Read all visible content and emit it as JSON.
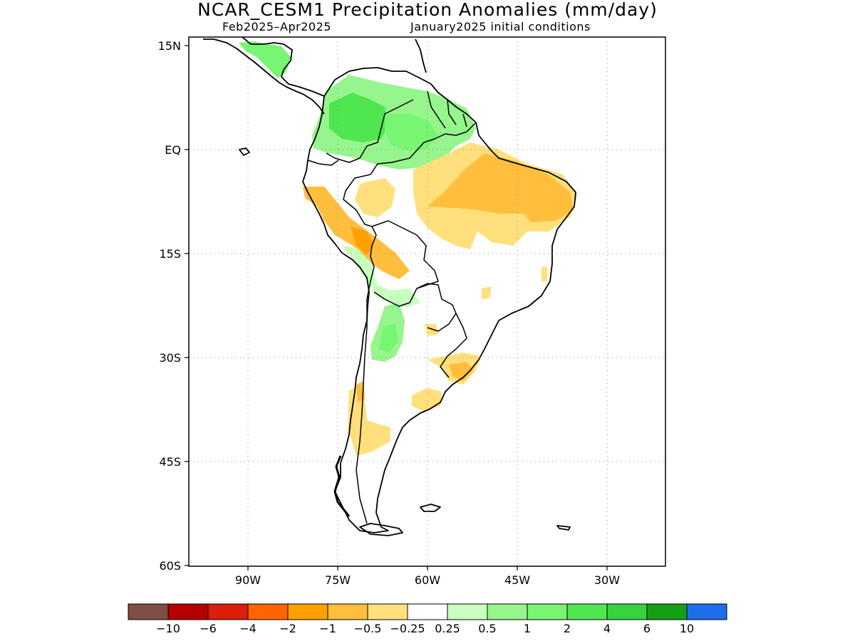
{
  "title": "NCAR_CESM1 Precipitation Anomalies (mm/day)",
  "subtitle_left": "Feb2025–Apr2025",
  "subtitle_right": "January2025 initial conditions",
  "map": {
    "type": "filled-contour-map",
    "region": "South America",
    "lat_ticks": [
      "15N",
      "EQ",
      "15S",
      "30S",
      "45S",
      "60S"
    ],
    "lon_ticks": [
      "90W",
      "75W",
      "60W",
      "45W",
      "30W"
    ],
    "lat_range": [
      -60,
      15
    ],
    "lon_range": [
      -100,
      -20
    ],
    "grid": "dotted"
  },
  "colorbar": {
    "colors": [
      "#7f4f45",
      "#b40000",
      "#dc1e0a",
      "#ff6400",
      "#ffa000",
      "#ffbe3c",
      "#ffe07c",
      "#ffffff",
      "#c8ffbe",
      "#96f58c",
      "#78f573",
      "#50e650",
      "#37d23c",
      "#14a014",
      "#1e6eeb"
    ],
    "labels": [
      "−10",
      "−6",
      "−4",
      "−2",
      "−1",
      "−0.5",
      "−0.25",
      "0.25",
      "0.5",
      "1",
      "2",
      "4",
      "6",
      "10"
    ]
  },
  "anomaly_regions": [
    {
      "name": "northwest-amazon-wet",
      "class": "2"
    },
    {
      "name": "central-america-wet",
      "class": "2"
    },
    {
      "name": "northeast-brazil-dry",
      "class": "-1"
    },
    {
      "name": "peru-bolivia-dry",
      "class": "-2"
    },
    {
      "name": "chaco-wet",
      "class": "1"
    },
    {
      "name": "patagonia-dry",
      "class": "-0.5"
    }
  ]
}
